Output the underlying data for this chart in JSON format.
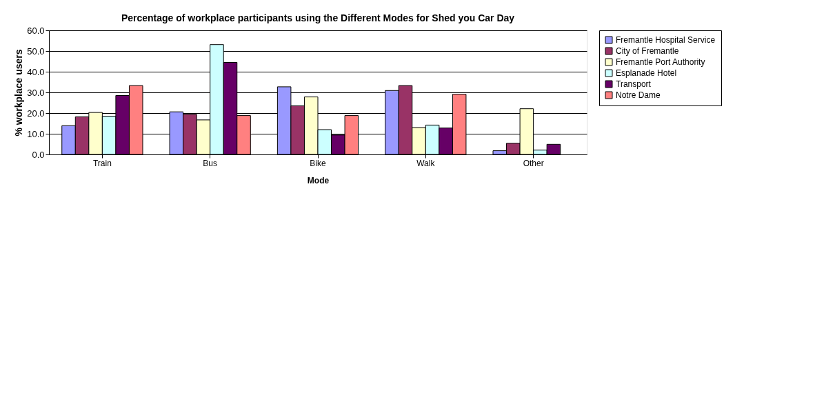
{
  "chart_data": {
    "type": "bar",
    "title": "Percentage of workplace participants using the Different Modes for Shed you Car Day",
    "xlabel": "Mode",
    "ylabel": "% workplace users",
    "categories": [
      "Train",
      "Bus",
      "Bike",
      "Walk",
      "Other"
    ],
    "series": [
      {
        "name": "Fremantle Hospital Service",
        "color": "#9999ff",
        "values": [
          13.9,
          20.6,
          32.7,
          30.9,
          1.8
        ]
      },
      {
        "name": "City of Fremantle",
        "color": "#993366",
        "values": [
          18.2,
          19.4,
          23.5,
          33.3,
          5.4
        ]
      },
      {
        "name": "Fremantle Port Authority",
        "color": "#ffffcc",
        "values": [
          20.3,
          16.7,
          27.8,
          13.0,
          22.1
        ]
      },
      {
        "name": "Esplanade Hotel",
        "color": "#ccffff",
        "values": [
          18.5,
          53.1,
          12.0,
          14.2,
          2.1
        ]
      },
      {
        "name": "Transport",
        "color": "#660066",
        "values": [
          28.5,
          44.5,
          9.4,
          12.8,
          4.9
        ]
      },
      {
        "name": "Notre Dame",
        "color": "#ff8080",
        "values": [
          33.3,
          18.8,
          18.8,
          29.1,
          null
        ]
      }
    ],
    "ylim": [
      0,
      60
    ],
    "yticks": [
      {
        "value": 0,
        "label": "0.0"
      },
      {
        "value": 10,
        "label": "10.0"
      },
      {
        "value": 20,
        "label": "20.0"
      },
      {
        "value": 30,
        "label": "30.0"
      },
      {
        "value": 40,
        "label": "40.0"
      },
      {
        "value": 50,
        "label": "50.0"
      },
      {
        "value": 60,
        "label": "60.0"
      }
    ],
    "grid": "y",
    "legend": "right"
  }
}
